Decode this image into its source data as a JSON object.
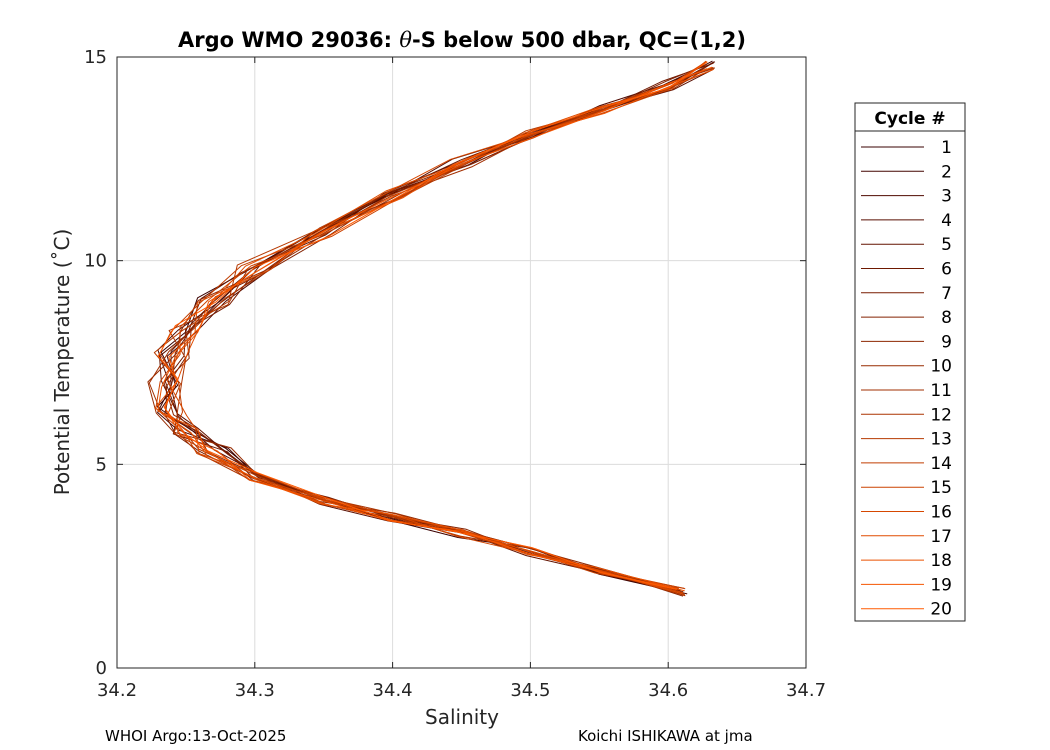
{
  "chart_data": {
    "type": "line",
    "title_main": "Argo WMO 29036: ",
    "title_theta": "θ",
    "title_rest": "-S below 500 dbar,  QC=(1,2)",
    "xlabel": "Salinity",
    "ylabel": "Potential Temperature (˚C)",
    "xlim": [
      34.2,
      34.7
    ],
    "ylim": [
      0,
      15
    ],
    "xticks": [
      "34.2",
      "34.3",
      "34.4",
      "34.5",
      "34.6",
      "34.7"
    ],
    "yticks": [
      "0",
      "5",
      "10",
      "15"
    ],
    "grid": true,
    "legend_title": "Cycle #",
    "legend_position": "right-outside",
    "series_color_start": "#3a0000",
    "series_color_end": "#ff5a00",
    "base_profile": [
      [
        34.61,
        1.85
      ],
      [
        34.55,
        2.4
      ],
      [
        34.5,
        2.85
      ],
      [
        34.45,
        3.3
      ],
      [
        34.4,
        3.7
      ],
      [
        34.35,
        4.1
      ],
      [
        34.3,
        4.7
      ],
      [
        34.27,
        5.3
      ],
      [
        34.25,
        5.8
      ],
      [
        34.24,
        6.3
      ],
      [
        34.235,
        7.0
      ],
      [
        34.24,
        7.7
      ],
      [
        34.25,
        8.3
      ],
      [
        34.27,
        9.0
      ],
      [
        34.3,
        9.8
      ],
      [
        34.35,
        10.7
      ],
      [
        34.4,
        11.6
      ],
      [
        34.45,
        12.4
      ],
      [
        34.5,
        13.1
      ],
      [
        34.55,
        13.7
      ],
      [
        34.6,
        14.3
      ],
      [
        34.63,
        14.8
      ]
    ],
    "series": [
      {
        "name": "1"
      },
      {
        "name": "2"
      },
      {
        "name": "3"
      },
      {
        "name": "4"
      },
      {
        "name": "5"
      },
      {
        "name": "6"
      },
      {
        "name": "7"
      },
      {
        "name": "8"
      },
      {
        "name": "9"
      },
      {
        "name": "10"
      },
      {
        "name": "11"
      },
      {
        "name": "12"
      },
      {
        "name": "13"
      },
      {
        "name": "14"
      },
      {
        "name": "15"
      },
      {
        "name": "16"
      },
      {
        "name": "17"
      },
      {
        "name": "18"
      },
      {
        "name": "19"
      },
      {
        "name": "20"
      }
    ]
  },
  "footer": {
    "left": "WHOI Argo:13-Oct-2025",
    "right": "Koichi ISHIKAWA at jma"
  }
}
